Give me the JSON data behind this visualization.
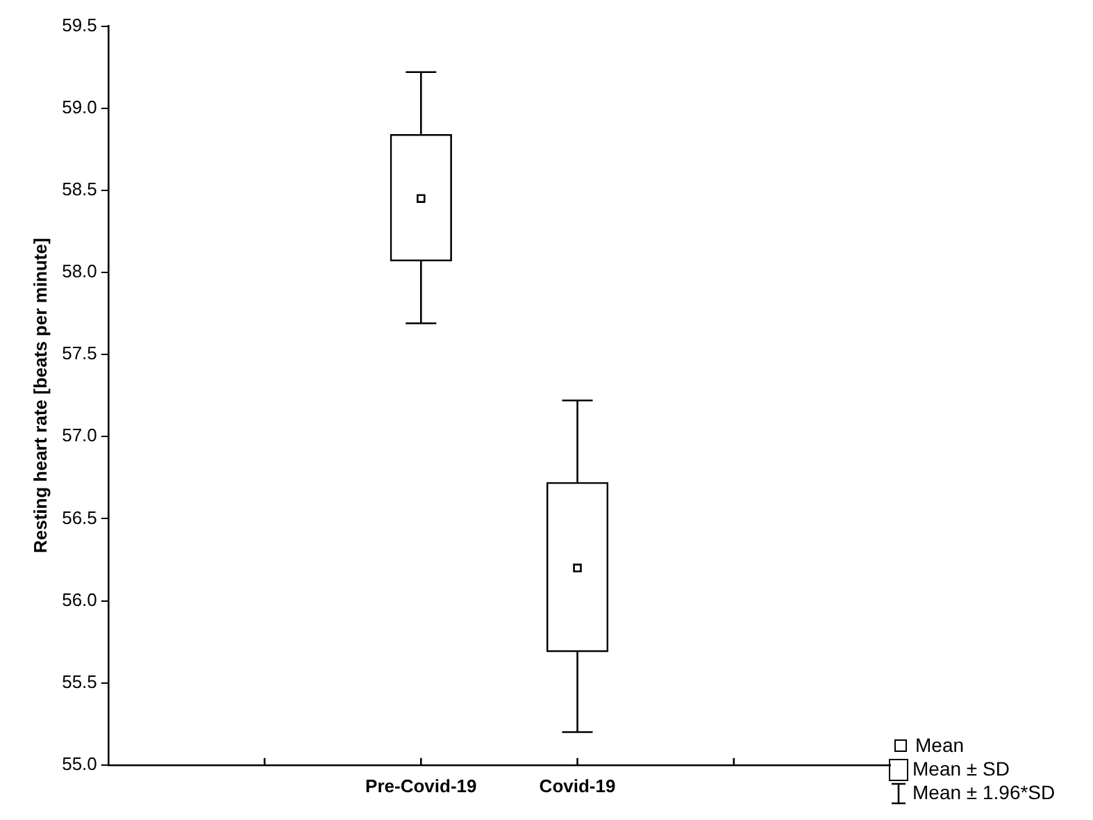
{
  "chart_data": {
    "type": "box",
    "ylabel": "Resting heart rate [beats per minute]",
    "categories": [
      null,
      "Pre-Covid-19",
      "Covid-19",
      null
    ],
    "boxes": [
      null,
      {
        "low": 57.69,
        "q1": 58.07,
        "q3": 58.84,
        "high": 59.22,
        "mean": 58.45
      },
      {
        "low": 55.2,
        "q1": 55.69,
        "q3": 56.72,
        "high": 57.22,
        "mean": 56.2
      },
      null
    ],
    "ylim": [
      55,
      59.5
    ],
    "yticks": [
      {
        "value": 55,
        "label": "55.0"
      },
      {
        "value": 55.5,
        "label": "55.5"
      },
      {
        "value": 56,
        "label": "56.0"
      },
      {
        "value": 56.5,
        "label": "56.5"
      },
      {
        "value": 57,
        "label": "57.0"
      },
      {
        "value": 57.5,
        "label": "57.5"
      },
      {
        "value": 58,
        "label": "58.0"
      },
      {
        "value": 58.5,
        "label": "58.5"
      },
      {
        "value": 59,
        "label": "59.0"
      },
      {
        "value": 59.5,
        "label": "59.5"
      }
    ],
    "grid": false,
    "annotations": [
      "Mean",
      "Mean ± SD",
      "Mean ± 1.96*SD"
    ]
  }
}
